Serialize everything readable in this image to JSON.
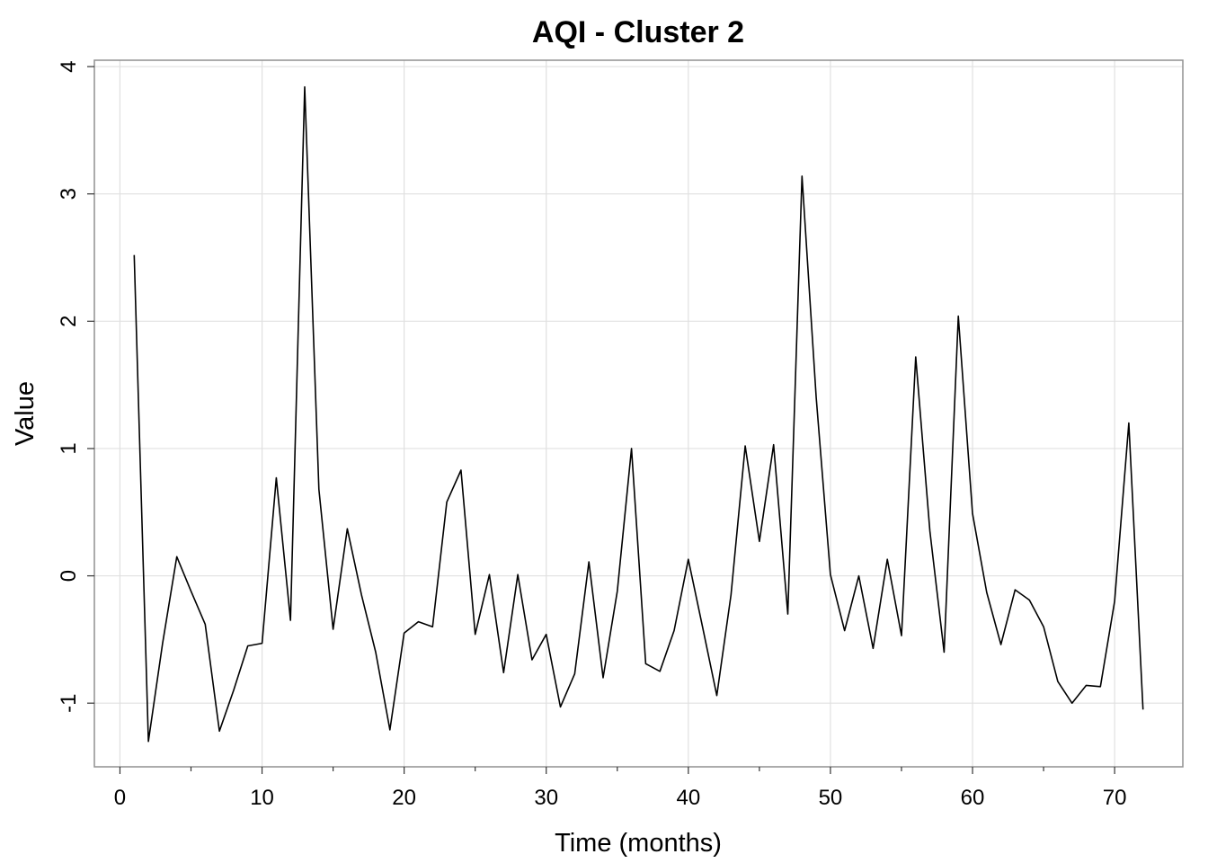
{
  "chart_data": {
    "type": "line",
    "title": "AQI - Cluster 2",
    "xlabel": "Time (months)",
    "ylabel": "Value",
    "xlim": [
      -1.8,
      74.8
    ],
    "ylim": [
      -1.5,
      4.05
    ],
    "xticks": [
      0,
      10,
      20,
      30,
      40,
      50,
      60,
      70
    ],
    "xtick_labels": [
      "0",
      "10",
      "20",
      "30",
      "40",
      "50",
      "60",
      "70"
    ],
    "xminor": [
      5,
      15,
      25,
      35,
      45,
      55,
      65
    ],
    "yticks": [
      -1,
      0,
      1,
      2,
      3,
      4
    ],
    "ytick_labels": [
      "-1",
      "0",
      "1",
      "2",
      "3",
      "4"
    ],
    "grid": true,
    "legend": "none",
    "colors": {
      "line": "#000000",
      "grid": "#e0e0e0",
      "frame": "#909090"
    },
    "series": [
      {
        "x": [
          1,
          2,
          3,
          4,
          5,
          6,
          7,
          8,
          9,
          10,
          11,
          12,
          13,
          14,
          15,
          16,
          17,
          18,
          19,
          20,
          21,
          22,
          23,
          24,
          25,
          26,
          27,
          28,
          29,
          30,
          31,
          32,
          33,
          34,
          35,
          36,
          37,
          38,
          39,
          40,
          41,
          42,
          43,
          44,
          45,
          46,
          47,
          48,
          49,
          50,
          51,
          52,
          53,
          54,
          55,
          56,
          57,
          58,
          59,
          60,
          61,
          62,
          63,
          64,
          65,
          66,
          67,
          68,
          69,
          70,
          71,
          72
        ],
        "values": [
          2.52,
          -1.3,
          -0.53,
          0.15,
          -0.12,
          -0.38,
          -1.22,
          -0.9,
          -0.55,
          -0.53,
          0.77,
          -0.35,
          3.84,
          0.68,
          -0.42,
          0.37,
          -0.15,
          -0.6,
          -1.21,
          -0.45,
          -0.36,
          -0.4,
          0.58,
          0.83,
          -0.46,
          0.01,
          -0.76,
          0.01,
          -0.66,
          -0.46,
          -1.03,
          -0.77,
          0.11,
          -0.8,
          -0.12,
          1.0,
          -0.69,
          -0.75,
          -0.43,
          0.13,
          -0.4,
          -0.94,
          -0.15,
          1.02,
          0.27,
          1.03,
          -0.3,
          3.14,
          1.4,
          0.01,
          -0.43,
          0.0,
          -0.57,
          0.13,
          -0.47,
          1.72,
          0.35,
          -0.6,
          2.04,
          0.49,
          -0.13,
          -0.54,
          -0.11,
          -0.19,
          -0.4,
          -0.83,
          -1.0,
          -0.86,
          -0.87,
          -0.2,
          1.2,
          -1.05
        ]
      }
    ]
  }
}
